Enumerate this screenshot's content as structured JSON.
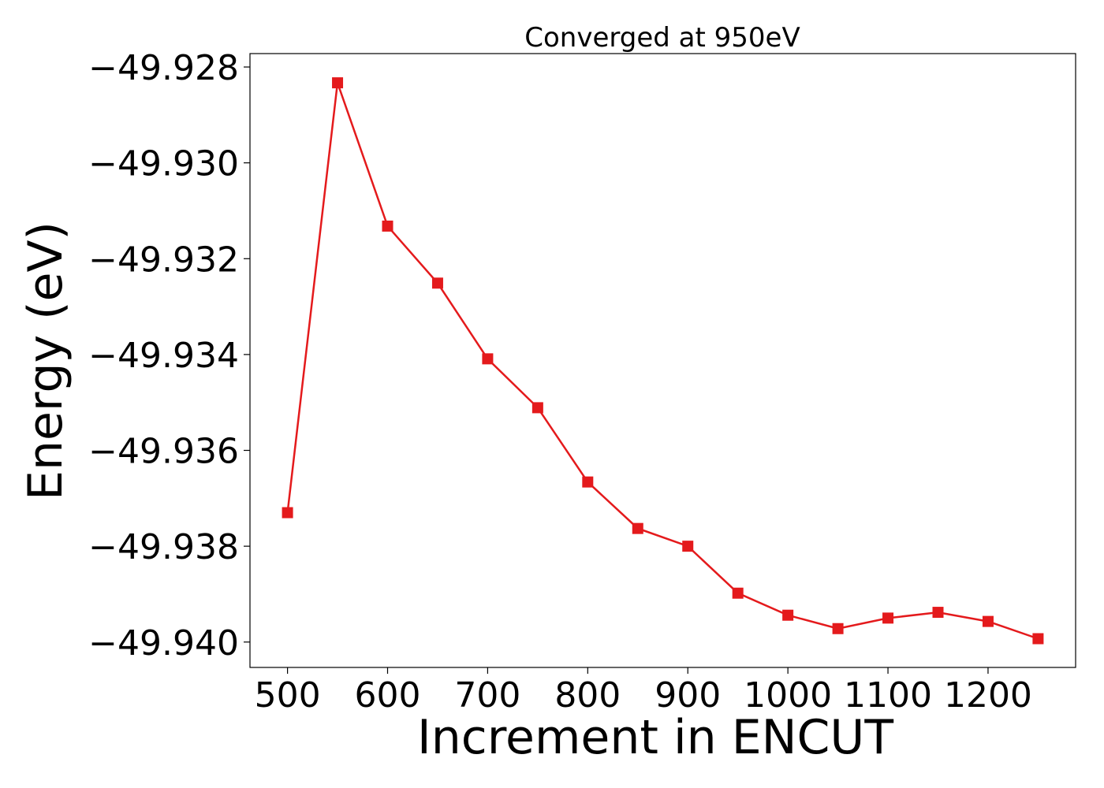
{
  "chart_data": {
    "type": "line",
    "title": "Converged at 950eV",
    "xlabel": "Increment in ENCUT",
    "ylabel": "Energy (eV)",
    "xlim": [
      462.5,
      1287.5
    ],
    "ylim": [
      -49.94053,
      -49.92772
    ],
    "x_ticks": [
      500,
      600,
      700,
      800,
      900,
      1000,
      1100,
      1200
    ],
    "x_tick_labels": [
      "500",
      "600",
      "700",
      "800",
      "900",
      "1000",
      "1100",
      "1200"
    ],
    "y_ticks": [
      -49.928,
      -49.93,
      -49.932,
      -49.934,
      -49.936,
      -49.938,
      -49.94
    ],
    "y_tick_labels": [
      "−49.928",
      "−49.930",
      "−49.932",
      "−49.934",
      "−49.936",
      "−49.938",
      "−49.940"
    ],
    "grid": false,
    "marker": "square",
    "series": [
      {
        "color": "#e41a1c",
        "x": [
          500,
          550,
          600,
          650,
          700,
          750,
          800,
          850,
          900,
          950,
          1000,
          1050,
          1100,
          1150,
          1200,
          1250
        ],
        "y": [
          -49.9373,
          -49.92833,
          -49.93132,
          -49.93251,
          -49.93409,
          -49.93511,
          -49.93666,
          -49.93763,
          -49.938,
          -49.93898,
          -49.93944,
          -49.93972,
          -49.9395,
          -49.93938,
          -49.93957,
          -49.93993
        ]
      }
    ]
  }
}
